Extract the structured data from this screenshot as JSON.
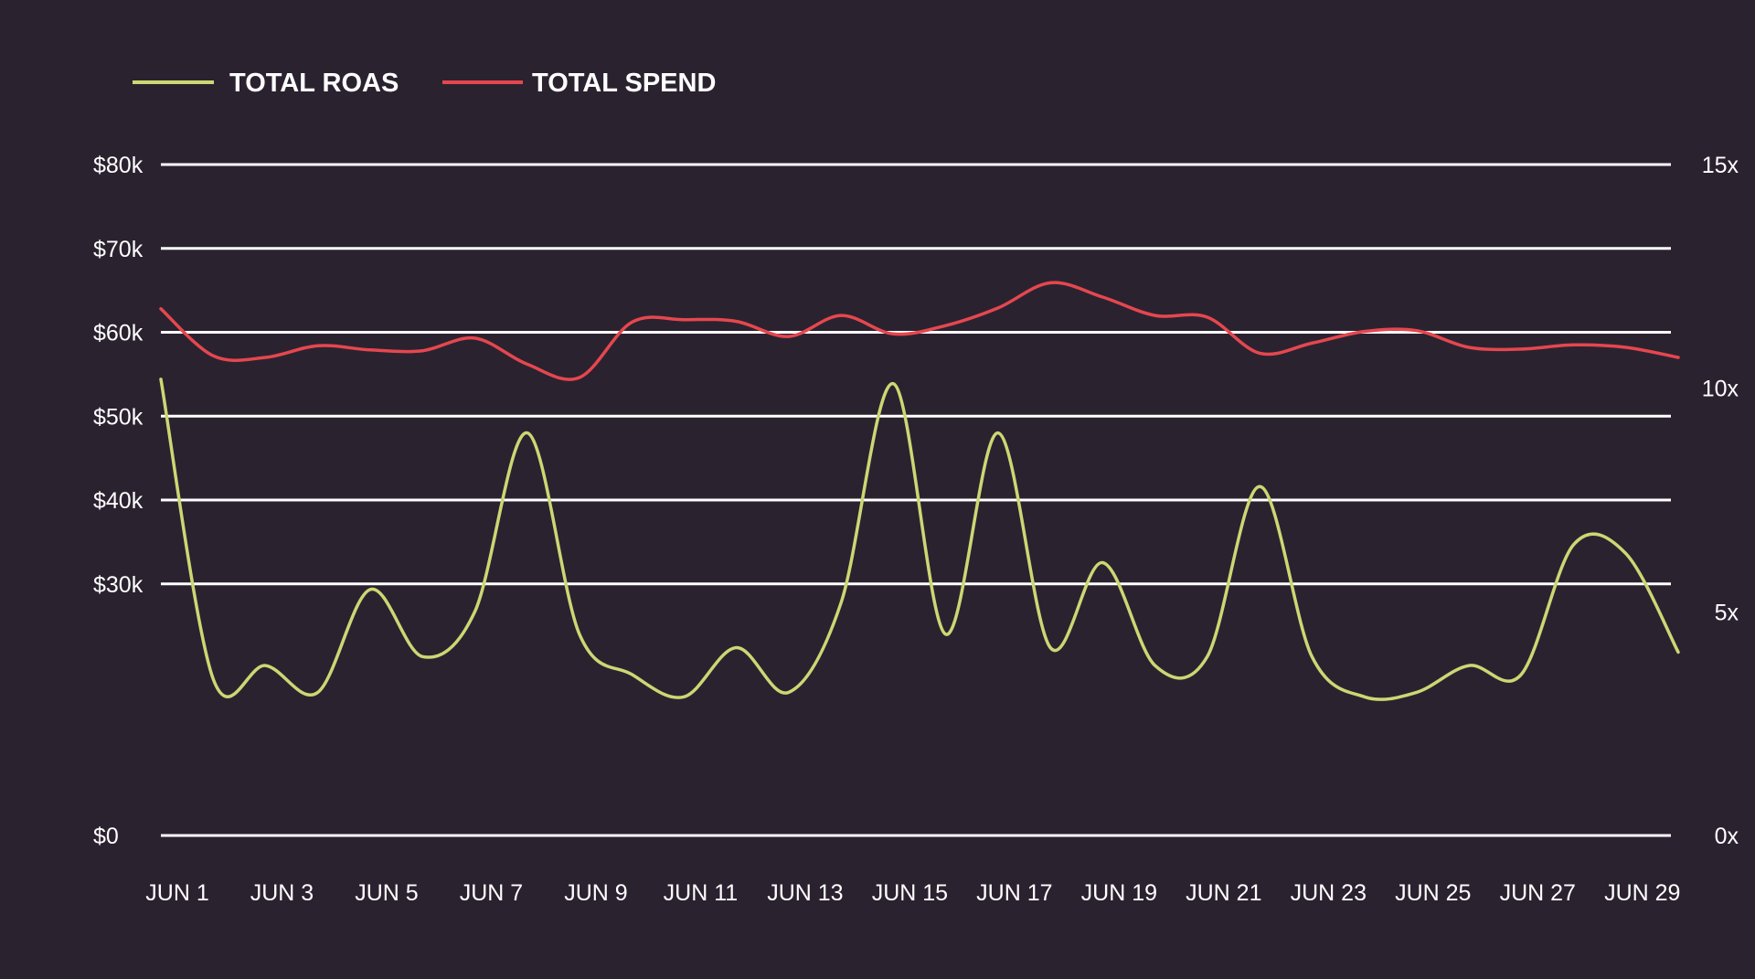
{
  "chart_data": {
    "type": "line",
    "title": "",
    "xlabel": "",
    "ylabel": "",
    "legend": [
      {
        "label": "TOTAL ROAS",
        "color": "#cbd873"
      },
      {
        "label": "TOTAL SPEND",
        "color": "#e5474e"
      }
    ],
    "legend_position": "top-left",
    "grid": true,
    "background_color": "#2b2230",
    "grid_color": "#ffffff",
    "left_axis": {
      "ylim": [
        0,
        80000
      ],
      "ticks": [
        0,
        30000,
        40000,
        50000,
        60000,
        70000,
        80000
      ],
      "tick_labels": [
        "$0",
        "$30k",
        "$40k",
        "$50k",
        "$60k",
        "$70k",
        "$80k"
      ]
    },
    "right_axis": {
      "ylim": [
        0,
        15
      ],
      "ticks": [
        0,
        5,
        10,
        15
      ],
      "tick_labels": [
        "0x",
        "5x",
        "10x",
        "15x"
      ]
    },
    "x_tick_labels": [
      "JUN 1",
      "JUN 3",
      "JUN 5",
      "JUN 7",
      "JUN 9",
      "JUN 11",
      "JUN 13",
      "JUN 15",
      "JUN 17",
      "JUN 19",
      "JUN 21",
      "JUN 23",
      "JUN 25",
      "JUN 27",
      "JUN 29"
    ],
    "series": [
      {
        "name": "TOTAL ROAS",
        "axis": "right",
        "color": "#cbd873",
        "x": [
          "Jun 1",
          "Jun 2",
          "Jun 3",
          "Jun 4",
          "Jun 5",
          "Jun 6",
          "Jun 7",
          "Jun 8",
          "Jun 9",
          "Jun 10",
          "Jun 11",
          "Jun 12",
          "Jun 13",
          "Jun 14",
          "Jun 15",
          "Jun 16",
          "Jun 17",
          "Jun 18",
          "Jun 19",
          "Jun 20",
          "Jun 21",
          "Jun 22",
          "Jun 23",
          "Jun 24",
          "Jun 25",
          "Jun 26",
          "Jun 27",
          "Jun 28",
          "Jun 29",
          "Jun 30"
        ],
        "values": [
          10.2,
          3.5,
          3.8,
          3.2,
          5.5,
          4.0,
          5.0,
          9.0,
          4.5,
          3.6,
          3.1,
          4.2,
          3.2,
          5.2,
          10.1,
          4.5,
          9.0,
          4.2,
          6.1,
          3.8,
          4.0,
          7.8,
          4.0,
          3.1,
          3.2,
          3.8,
          3.6,
          6.5,
          6.3,
          4.1
        ]
      },
      {
        "name": "TOTAL SPEND",
        "axis": "left",
        "color": "#e5474e",
        "x": [
          "Jun 1",
          "Jun 2",
          "Jun 3",
          "Jun 4",
          "Jun 5",
          "Jun 6",
          "Jun 7",
          "Jun 8",
          "Jun 9",
          "Jun 10",
          "Jun 11",
          "Jun 12",
          "Jun 13",
          "Jun 14",
          "Jun 15",
          "Jun 16",
          "Jun 17",
          "Jun 18",
          "Jun 19",
          "Jun 20",
          "Jun 21",
          "Jun 22",
          "Jun 23",
          "Jun 24",
          "Jun 25",
          "Jun 26",
          "Jun 27",
          "Jun 28",
          "Jun 29",
          "Jun 30"
        ],
        "values": [
          62800,
          57200,
          57000,
          58400,
          57900,
          57800,
          59300,
          56200,
          54600,
          61200,
          61500,
          61300,
          59500,
          62000,
          59800,
          60800,
          62900,
          65900,
          64200,
          62000,
          61800,
          57500,
          58700,
          60100,
          60200,
          58200,
          58000,
          58500,
          58200,
          57000
        ]
      }
    ]
  }
}
